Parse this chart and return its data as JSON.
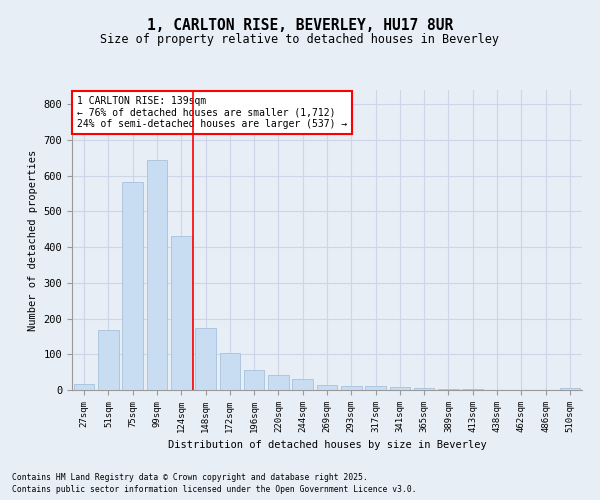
{
  "title": "1, CARLTON RISE, BEVERLEY, HU17 8UR",
  "subtitle": "Size of property relative to detached houses in Beverley",
  "xlabel": "Distribution of detached houses by size in Beverley",
  "ylabel": "Number of detached properties",
  "categories": [
    "27sqm",
    "51sqm",
    "75sqm",
    "99sqm",
    "124sqm",
    "148sqm",
    "172sqm",
    "196sqm",
    "220sqm",
    "244sqm",
    "269sqm",
    "293sqm",
    "317sqm",
    "341sqm",
    "365sqm",
    "389sqm",
    "413sqm",
    "438sqm",
    "462sqm",
    "486sqm",
    "510sqm"
  ],
  "values": [
    18,
    168,
    583,
    645,
    430,
    173,
    105,
    57,
    42,
    32,
    15,
    11,
    10,
    8,
    6,
    4,
    2,
    1,
    0,
    0,
    5
  ],
  "bar_color": "#c9ddf2",
  "bar_edge_color": "#9bbbd8",
  "vline_x_index": 4,
  "vline_color": "red",
  "annotation_title": "1 CARLTON RISE: 139sqm",
  "annotation_line1": "← 76% of detached houses are smaller (1,712)",
  "annotation_line2": "24% of semi-detached houses are larger (537) →",
  "annotation_box_color": "white",
  "annotation_box_edge": "red",
  "ylim": [
    0,
    840
  ],
  "yticks": [
    0,
    100,
    200,
    300,
    400,
    500,
    600,
    700,
    800
  ],
  "grid_color": "#cdd6e8",
  "bg_color": "#e8eef6",
  "footnote1": "Contains HM Land Registry data © Crown copyright and database right 2025.",
  "footnote2": "Contains public sector information licensed under the Open Government Licence v3.0."
}
